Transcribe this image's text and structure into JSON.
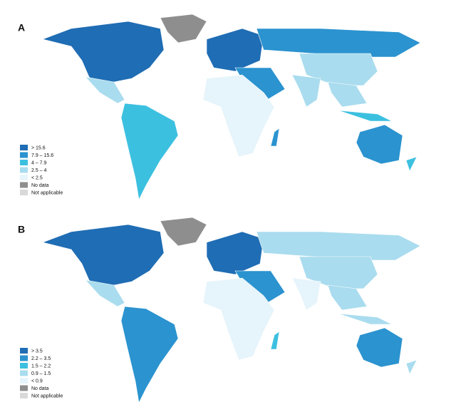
{
  "panels": [
    {
      "label": "A",
      "legend": [
        {
          "label": "> 15.6",
          "color": "#1f6db4"
        },
        {
          "label": "7.9 – 15.6",
          "color": "#2b93cf"
        },
        {
          "label": "4 – 7.9",
          "color": "#3cc0e0"
        },
        {
          "label": "2.5 – 4",
          "color": "#a9dcee"
        },
        {
          "label": "< 2.5",
          "color": "#e6f4fb"
        },
        {
          "label": "No data",
          "color": "#8e8e8e"
        },
        {
          "label": "Not applicable",
          "color": "#d9d9d9"
        }
      ]
    },
    {
      "label": "B",
      "legend": [
        {
          "label": "> 3.5",
          "color": "#1f6db4"
        },
        {
          "label": "2.2 – 3.5",
          "color": "#2b93cf"
        },
        {
          "label": "1.5 – 2.2",
          "color": "#3cc0e0"
        },
        {
          "label": "0.9 – 1.5",
          "color": "#a9dcee"
        },
        {
          "label": "< 0.9",
          "color": "#e6f4fb"
        },
        {
          "label": "No data",
          "color": "#8e8e8e"
        },
        {
          "label": "Not applicable",
          "color": "#d9d9d9"
        }
      ]
    }
  ]
}
